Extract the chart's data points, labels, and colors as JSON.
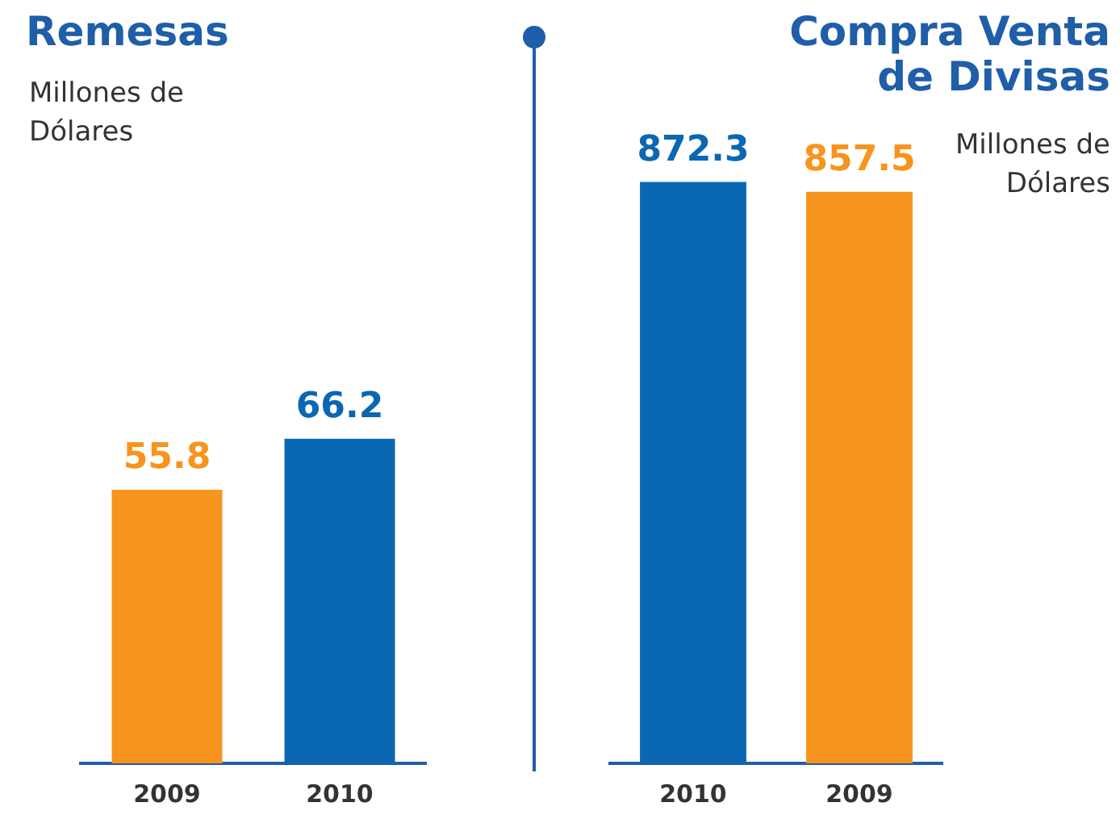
{
  "chart_data": [
    {
      "type": "bar",
      "title": "Remesas",
      "subtitle": "Millones de Dólares",
      "categories": [
        "2009",
        "2010"
      ],
      "values": [
        55.8,
        66.2
      ],
      "colors": [
        "#f7941d",
        "#0a67b2"
      ],
      "data_labels": true
    },
    {
      "type": "bar",
      "title": "Compra Venta de Divisas",
      "subtitle": "Millones de Dólares",
      "categories": [
        "2010",
        "2009"
      ],
      "values": [
        872.3,
        857.5
      ],
      "colors": [
        "#0a67b2",
        "#f7941d"
      ],
      "data_labels": true
    }
  ]
}
